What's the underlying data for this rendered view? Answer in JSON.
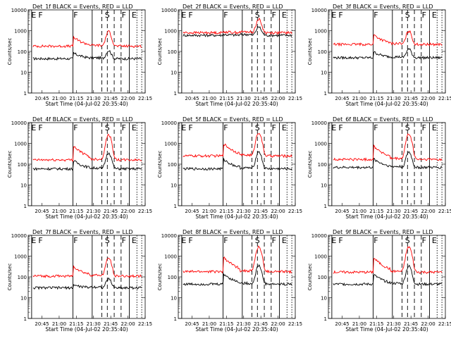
{
  "chart_data": {
    "type": "line",
    "y_scale": "log",
    "ylim": [
      1,
      10000
    ],
    "xlim": [
      20.55,
      22.25
    ],
    "x_ticks": [
      20.75,
      21.0,
      21.25,
      21.5,
      21.75,
      22.0,
      22.25
    ],
    "y_ticks": [
      1,
      10,
      100,
      1000,
      10000
    ],
    "x_tick_labels": [
      "20:45",
      "21:00",
      "21:15",
      "21:30",
      "21:45",
      "22:00",
      "22:15"
    ],
    "y_tick_labels": [
      "1",
      "10",
      "100",
      "1000",
      "10000"
    ],
    "xlabel": "Start Time (04-Jul-02 20:35:40)",
    "ylabel": "Counts/sec",
    "colors": {
      "events": "#000000",
      "lld": "#ff0000"
    },
    "legend_note": "BLACK = Events, RED = LLD",
    "markers": {
      "solid": [
        20.6,
        21.2,
        21.48,
        22.02
      ],
      "dashed": [
        21.62,
        21.7,
        21.8,
        21.9
      ],
      "dotted": [
        22.13,
        22.2
      ]
    },
    "segment_labels": [
      {
        "text": "E",
        "x": 20.63
      },
      {
        "text": "F",
        "x": 20.73
      },
      {
        "text": "F",
        "x": 21.24
      },
      {
        "text": "S",
        "x": 21.7
      },
      {
        "text": "F",
        "x": 21.94
      },
      {
        "text": "E",
        "x": 22.09
      }
    ],
    "panels": [
      {
        "title": "Det_1f BLACK = Events, RED = LLD",
        "lld_base": 180,
        "lld_peak": 900,
        "lld_bump": 450,
        "evt_base": 45,
        "evt_peak": 110,
        "evt_bump": 80
      },
      {
        "title": "Det_2f BLACK = Events, RED = LLD",
        "lld_base": 800,
        "lld_peak": 3500,
        "lld_bump": 900,
        "evt_base": 600,
        "evt_peak": 1500,
        "evt_bump": 650
      },
      {
        "title": "Det_3f BLACK = Events, RED = LLD",
        "lld_base": 220,
        "lld_peak": 950,
        "lld_bump": 600,
        "evt_base": 50,
        "evt_peak": 130,
        "evt_bump": 90
      },
      {
        "title": "Det_4f BLACK = Events, RED = LLD",
        "lld_base": 160,
        "lld_peak": 2600,
        "lld_bump": 700,
        "evt_base": 60,
        "evt_peak": 350,
        "evt_bump": 140
      },
      {
        "title": "Det_5f BLACK = Events, RED = LLD",
        "lld_base": 250,
        "lld_peak": 3300,
        "lld_bump": 900,
        "evt_base": 60,
        "evt_peak": 400,
        "evt_bump": 160
      },
      {
        "title": "Det_6f BLACK = Events, RED = LLD",
        "lld_base": 170,
        "lld_peak": 2800,
        "lld_bump": 700,
        "evt_base": 70,
        "evt_peak": 380,
        "evt_bump": 170
      },
      {
        "title": "Det_7f BLACK = Events, RED = LLD",
        "lld_base": 110,
        "lld_peak": 800,
        "lld_bump": 300,
        "evt_base": 30,
        "evt_peak": 80,
        "evt_bump": 40
      },
      {
        "title": "Det_8f BLACK = Events, RED = LLD",
        "lld_base": 180,
        "lld_peak": 2800,
        "lld_bump": 800,
        "evt_base": 45,
        "evt_peak": 350,
        "evt_bump": 130
      },
      {
        "title": "Det_9f BLACK = Events, RED = LLD",
        "lld_base": 170,
        "lld_peak": 2800,
        "lld_bump": 750,
        "evt_base": 45,
        "evt_peak": 330,
        "evt_bump": 120
      }
    ]
  }
}
